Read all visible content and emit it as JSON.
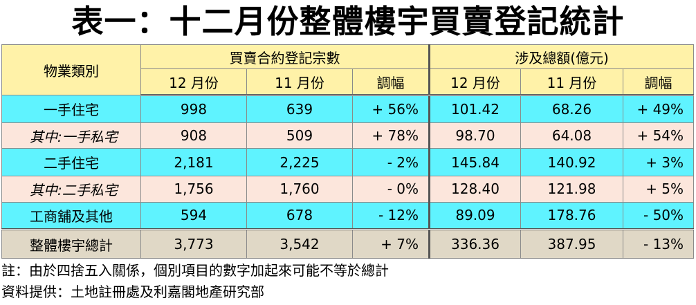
{
  "title": "表一：十二月份整體樓宇買賣登記統計",
  "table": {
    "category_header": "物業類別",
    "group_headers": [
      "買賣合約登記宗數",
      "涉及總額(億元)"
    ],
    "sub_headers": [
      "12 月份",
      "11 月份",
      "調幅",
      "12 月份",
      "11 月份",
      "調幅"
    ],
    "rows": [
      {
        "label": "一手住宅",
        "cells": [
          "998",
          "639",
          "+ 56%",
          "101.42",
          "68.26",
          "+ 49%"
        ]
      },
      {
        "label": "其中:一手私宅",
        "cells": [
          "908",
          "509",
          "+ 78%",
          "98.70",
          "64.08",
          "+ 54%"
        ]
      },
      {
        "label": "二手住宅",
        "cells": [
          "2,181",
          "2,225",
          "- 2%",
          "145.84",
          "140.92",
          "+ 3%"
        ]
      },
      {
        "label": "其中:二手私宅",
        "cells": [
          "1,756",
          "1,760",
          "- 0%",
          "128.40",
          "121.98",
          "+ 5%"
        ]
      },
      {
        "label": "工商舖及其他",
        "cells": [
          "594",
          "678",
          "- 12%",
          "89.09",
          "178.76",
          "- 50%"
        ]
      },
      {
        "label": "整體樓宇總計",
        "cells": [
          "3,773",
          "3,542",
          "+ 7%",
          "336.36",
          "387.95",
          "- 13%"
        ]
      }
    ]
  },
  "notes": {
    "note1": "註：由於四捨五入關係，個別項目的數字加起來可能不等於總計",
    "note2": "資料提供：土地註冊處及利嘉閣地產研究部"
  },
  "colors": {
    "header_bg": "#fff2a8",
    "main_row_bg": "#5ff3ff",
    "sub_row_bg": "#fce6dc",
    "total_row_bg": "#e0d8c6"
  }
}
